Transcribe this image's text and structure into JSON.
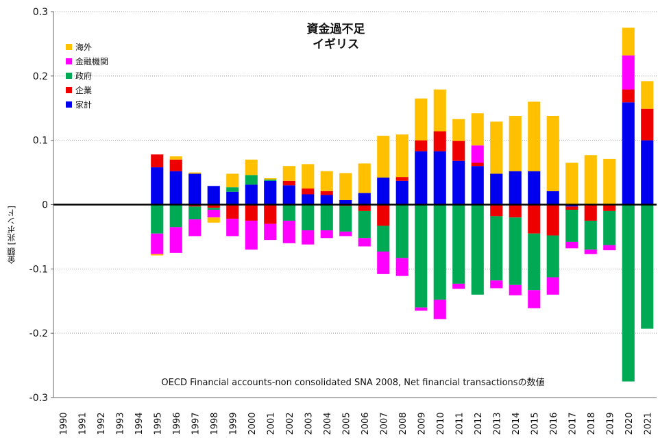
{
  "chart_data": {
    "type": "bar",
    "stacked": true,
    "title": "資金過不足",
    "subtitle": "イギリス",
    "ylabel": "金額 [兆ポンド]",
    "xlabel": "",
    "footnote": "OECD Financial accounts-non consolidated SNA 2008, Net financial transactionsの数値",
    "ylim": [
      -0.3,
      0.3
    ],
    "yticks": [
      0.3,
      0.2,
      0.1,
      0,
      -0.1,
      -0.2,
      -0.3
    ],
    "ytick_labels": [
      "0.3",
      "0.2",
      "0.1",
      "0",
      "-0.1",
      "-0.2",
      "-0.3"
    ],
    "grid": true,
    "legend_position": "top-left",
    "categories": [
      "1990",
      "1991",
      "1992",
      "1993",
      "1994",
      "1995",
      "1996",
      "1997",
      "1998",
      "1999",
      "2000",
      "2001",
      "2002",
      "2003",
      "2004",
      "2005",
      "2006",
      "2007",
      "2008",
      "2009",
      "2010",
      "2011",
      "2012",
      "2013",
      "2014",
      "2015",
      "2016",
      "2017",
      "2018",
      "2019",
      "2020",
      "2021"
    ],
    "series": [
      {
        "name": "家計",
        "color": "#0000ee",
        "values": [
          0,
          0,
          0,
          0,
          0,
          0.058,
          0.052,
          0.048,
          0.029,
          0.02,
          0.031,
          0.037,
          0.03,
          0.016,
          0.015,
          0.007,
          0.018,
          0.042,
          0.037,
          0.083,
          0.083,
          0.068,
          0.06,
          0.048,
          0.052,
          0.052,
          0.021,
          -0.003,
          0,
          0.001,
          0.159,
          0.1
        ]
      },
      {
        "name": "企業",
        "color": "#ee0000",
        "values": [
          0,
          0,
          0,
          0,
          0,
          0.02,
          0.018,
          -0.003,
          -0.005,
          -0.022,
          -0.025,
          -0.03,
          0.007,
          0.009,
          0.006,
          -0.002,
          -0.01,
          -0.033,
          0.006,
          0.017,
          0.031,
          0.031,
          0.005,
          -0.018,
          -0.02,
          -0.045,
          -0.048,
          -0.005,
          -0.025,
          -0.01,
          0.02,
          0.049
        ]
      },
      {
        "name": "政府",
        "color": "#00aa55",
        "values": [
          0,
          0,
          0,
          0,
          0,
          -0.045,
          -0.035,
          -0.02,
          -0.003,
          0.007,
          0.015,
          0.002,
          -0.025,
          -0.04,
          -0.04,
          -0.04,
          -0.042,
          -0.04,
          -0.083,
          -0.16,
          -0.148,
          -0.123,
          -0.14,
          -0.1,
          -0.105,
          -0.088,
          -0.065,
          -0.05,
          -0.045,
          -0.053,
          -0.275,
          -0.193
        ]
      },
      {
        "name": "金融機関",
        "color": "#ff00ff",
        "values": [
          0,
          0,
          0,
          0,
          0,
          -0.032,
          -0.04,
          -0.026,
          -0.012,
          -0.027,
          -0.045,
          -0.025,
          -0.035,
          -0.022,
          -0.012,
          -0.007,
          -0.013,
          -0.035,
          -0.028,
          -0.005,
          -0.03,
          -0.008,
          0.027,
          -0.012,
          -0.016,
          -0.028,
          -0.027,
          -0.01,
          -0.007,
          -0.008,
          0.053,
          0
        ]
      },
      {
        "name": "海外",
        "color": "#ffc000",
        "values": [
          0,
          0,
          0,
          0,
          0,
          -0.002,
          0.005,
          0.002,
          -0.008,
          0.021,
          0.024,
          0.002,
          0.023,
          0.038,
          0.031,
          0.042,
          0.046,
          0.065,
          0.066,
          0.065,
          0.065,
          0.034,
          0.05,
          0.081,
          0.086,
          0.108,
          0.117,
          0.065,
          0.077,
          0.07,
          0.043,
          0.043
        ]
      }
    ]
  }
}
